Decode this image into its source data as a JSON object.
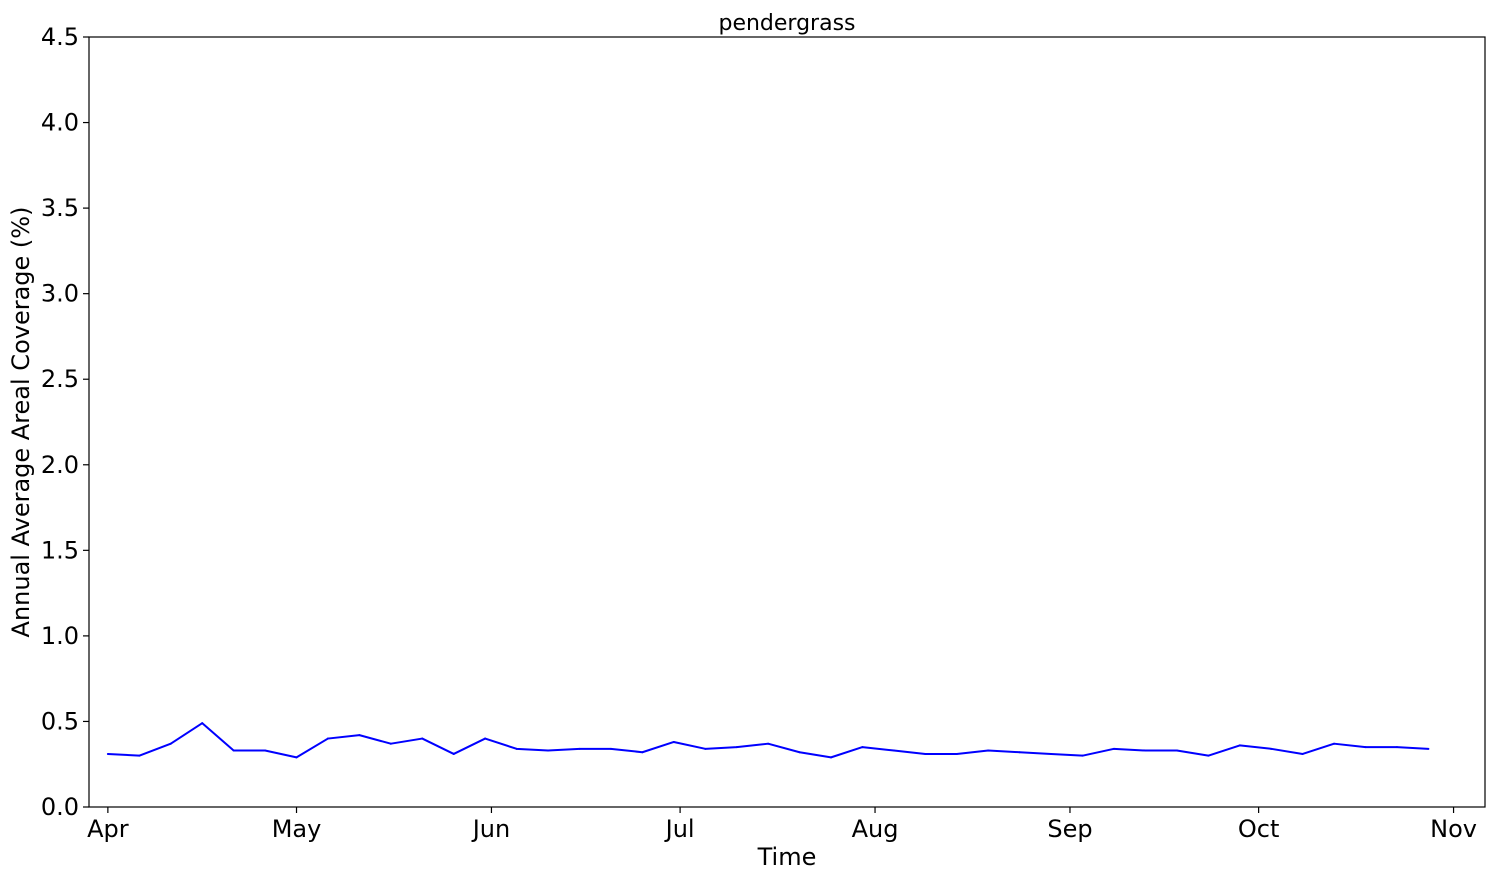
{
  "chart_data": {
    "type": "line",
    "title": "pendergrass",
    "xlabel": "Time",
    "ylabel": "Annual Average Areal Coverage (%)",
    "xlim": [
      "2023-03-29",
      "2023-11-06"
    ],
    "ylim": [
      0.0,
      4.5
    ],
    "x_ticks": [
      {
        "date": "2023-04-01",
        "label": "Apr"
      },
      {
        "date": "2023-05-01",
        "label": "May"
      },
      {
        "date": "2023-06-01",
        "label": "Jun"
      },
      {
        "date": "2023-07-01",
        "label": "Jul"
      },
      {
        "date": "2023-08-01",
        "label": "Aug"
      },
      {
        "date": "2023-09-01",
        "label": "Sep"
      },
      {
        "date": "2023-10-01",
        "label": "Oct"
      },
      {
        "date": "2023-11-01",
        "label": "Nov"
      }
    ],
    "y_ticks": [
      {
        "value": 0.0,
        "label": "0.0"
      },
      {
        "value": 0.5,
        "label": "0.5"
      },
      {
        "value": 1.0,
        "label": "1.0"
      },
      {
        "value": 1.5,
        "label": "1.5"
      },
      {
        "value": 2.0,
        "label": "2.0"
      },
      {
        "value": 2.5,
        "label": "2.5"
      },
      {
        "value": 3.0,
        "label": "3.0"
      },
      {
        "value": 3.5,
        "label": "3.5"
      },
      {
        "value": 4.0,
        "label": "4.0"
      },
      {
        "value": 4.5,
        "label": "4.5"
      }
    ],
    "grid": false,
    "series": [
      {
        "color": "#0000ff",
        "x": [
          "2023-04-01",
          "2023-04-06",
          "2023-04-11",
          "2023-04-16",
          "2023-04-21",
          "2023-04-26",
          "2023-05-01",
          "2023-05-06",
          "2023-05-11",
          "2023-05-16",
          "2023-05-21",
          "2023-05-26",
          "2023-05-31",
          "2023-06-05",
          "2023-06-10",
          "2023-06-15",
          "2023-06-20",
          "2023-06-25",
          "2023-06-30",
          "2023-07-05",
          "2023-07-10",
          "2023-07-15",
          "2023-07-20",
          "2023-07-25",
          "2023-07-30",
          "2023-08-04",
          "2023-08-09",
          "2023-08-14",
          "2023-08-19",
          "2023-08-24",
          "2023-08-29",
          "2023-09-03",
          "2023-09-08",
          "2023-09-13",
          "2023-09-18",
          "2023-09-23",
          "2023-09-28",
          "2023-10-03",
          "2023-10-08",
          "2023-10-13",
          "2023-10-18",
          "2023-10-23",
          "2023-10-28"
        ],
        "y": [
          0.31,
          0.3,
          0.37,
          0.49,
          0.33,
          0.33,
          0.29,
          0.4,
          0.42,
          0.37,
          0.4,
          0.31,
          0.4,
          0.34,
          0.33,
          0.34,
          0.34,
          0.32,
          0.38,
          0.34,
          0.35,
          0.37,
          0.32,
          0.29,
          0.35,
          0.33,
          0.31,
          0.31,
          0.33,
          0.32,
          0.31,
          0.3,
          0.34,
          0.33,
          0.33,
          0.3,
          0.36,
          0.34,
          0.31,
          0.37,
          0.35,
          0.35,
          0.34
        ]
      }
    ]
  }
}
